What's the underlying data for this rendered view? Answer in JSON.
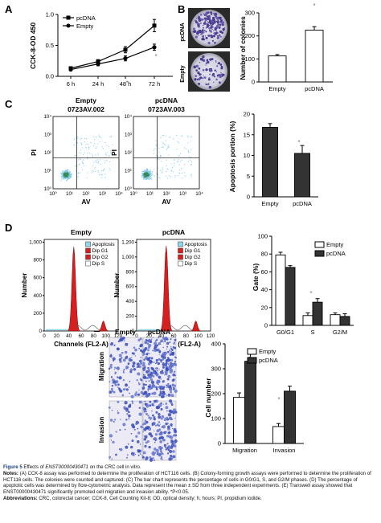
{
  "chart_data": [
    {
      "panel": "A",
      "type": "line",
      "ylabel": "CCK-8-OD 450",
      "categories": [
        "6 h",
        "24 h",
        "48 h",
        "72 h"
      ],
      "ylim": [
        0,
        1.0
      ],
      "yticks": [
        "0.0",
        "0.5",
        "1.0"
      ],
      "legend": "top-left",
      "series": [
        {
          "name": "pcDNA",
          "marker": "square",
          "values": [
            0.13,
            0.24,
            0.43,
            0.82
          ],
          "errors": [
            0.02,
            0.03,
            0.05,
            0.1
          ]
        },
        {
          "name": "Empty",
          "marker": "circle",
          "values": [
            0.11,
            0.2,
            0.29,
            0.47
          ],
          "errors": [
            0.02,
            0.03,
            0.04,
            0.05
          ]
        }
      ],
      "annotations": [
        "*",
        "*"
      ]
    },
    {
      "panel": "B",
      "type": "bar",
      "ylabel": "Number of colonies",
      "categories": [
        "Empty",
        "pcDNA"
      ],
      "values": [
        113,
        225
      ],
      "errors": [
        6,
        15
      ],
      "ylim": [
        0,
        300
      ],
      "yticks": [
        "0",
        "100",
        "200",
        "300"
      ],
      "fills": [
        "#ffffff",
        "#ffffff"
      ],
      "annotation": "*",
      "image_labels": [
        "pcDNA",
        "Empty"
      ]
    },
    {
      "panel": "C",
      "type": "bar",
      "ylabel": "Apoptosis portion (%)",
      "categories": [
        "Empty",
        "pcDNA"
      ],
      "values": [
        16.8,
        10.5
      ],
      "errors": [
        0.9,
        1.9
      ],
      "ylim": [
        0,
        20
      ],
      "yticks": [
        "0",
        "5",
        "10",
        "15",
        "20"
      ],
      "fills": [
        "#333333",
        "#333333"
      ],
      "annotation": "*"
    },
    {
      "panel": "D",
      "type": "bar",
      "ylabel": "Gate (%)",
      "categories": [
        "G0/G1",
        "S",
        "G2/M"
      ],
      "ylim": [
        0,
        100
      ],
      "yticks": [
        "0",
        "20",
        "40",
        "60",
        "80",
        "100"
      ],
      "legend": "top-right",
      "series": [
        {
          "name": "Empty",
          "fill": "#ffffff",
          "values": [
            79,
            11,
            12
          ],
          "errors": [
            3,
            3,
            2
          ]
        },
        {
          "name": "pcDNA",
          "fill": "#333333",
          "values": [
            65,
            26,
            10
          ],
          "errors": [
            2,
            4,
            3
          ]
        }
      ],
      "annotation": "*"
    },
    {
      "panel": "E",
      "type": "bar",
      "ylabel": "Cell number",
      "categories": [
        "Migration",
        "Invasion"
      ],
      "ylim": [
        0,
        400
      ],
      "yticks": [
        "0",
        "100",
        "200",
        "300",
        "400"
      ],
      "legend": "top-left",
      "series": [
        {
          "name": "Empty",
          "fill": "#ffffff",
          "values": [
            185,
            68
          ],
          "errors": [
            18,
            12
          ]
        },
        {
          "name": "pcDNA",
          "fill": "#333333",
          "values": [
            330,
            210
          ],
          "errors": [
            40,
            20
          ]
        }
      ],
      "annotations": [
        "*",
        "*"
      ]
    }
  ],
  "panels": {
    "A": {
      "letter": "A"
    },
    "B": {
      "letter": "B"
    },
    "C": {
      "letter": "C",
      "plots": [
        {
          "title": "Empty",
          "sample": "0723AV.002",
          "ylabel": "PI",
          "xlabel": "AV"
        },
        {
          "title": "pcDNA",
          "sample": "0723AV.003",
          "ylabel": "PI",
          "xlabel": "AV"
        }
      ],
      "log_ticks": [
        "10⁰",
        "10¹",
        "10²",
        "10³",
        "10⁴"
      ]
    },
    "D": {
      "letter": "D",
      "plots": [
        {
          "title": "Empty",
          "yticks": [
            "0",
            "200",
            "400",
            "600",
            "800",
            "1,000"
          ]
        },
        {
          "title": "pcDNA",
          "yticks": [
            "0",
            "200",
            "400",
            "600",
            "800",
            "1,000",
            "1,200"
          ]
        }
      ],
      "xticks": [
        "0",
        "20",
        "40",
        "60",
        "80",
        "100",
        "120"
      ],
      "ylabel": "Number",
      "xlabel": "Channels (FL2-A)",
      "legend": [
        {
          "label": "Apoptosis",
          "color": "#8fd8ee"
        },
        {
          "label": "Dip G1",
          "color": "#d81f1f"
        },
        {
          "label": "Dip G2",
          "color": "#d81f1f"
        },
        {
          "label": "Dip S",
          "color": "#ffffff"
        }
      ]
    },
    "E": {
      "letter": "E",
      "cols": [
        "Empty",
        "pcDNA"
      ],
      "rows": [
        "Migration",
        "Invasion"
      ]
    }
  },
  "caption": {
    "title_label": "Figure 5",
    "title_text": " Effects of ",
    "title_gene": "ENST00000430471",
    "title_tail": " on the CRC cell in vitro.",
    "notes_label": "Notes:",
    "notes_text": " (A) CCK-8 assay was performed to determine the proliferation of HCT116 cells. (B) Colony-forming growth assays were performed to determine the proliferation of HCT116 cells. The colonies were counted and captured. (C) The bar chart represents the percentage of cells in G0/G1, S, and G2/M phases. (D) The percentage of apoptotic cells was determined by flow-cytometric analysis. Data represent the mean ± SD from three independent experiments. (E) Transwell assay showed that ENST00000430471 significantly promoted cell migration and invasion ability. *P<0.05.",
    "abbr_label": "Abbreviations:",
    "abbr_text": " CRC, colorectal cancer; CCK-8, Cell Counting Kit-8; OD, optical density; h, hours; PI, propidium iodide."
  }
}
